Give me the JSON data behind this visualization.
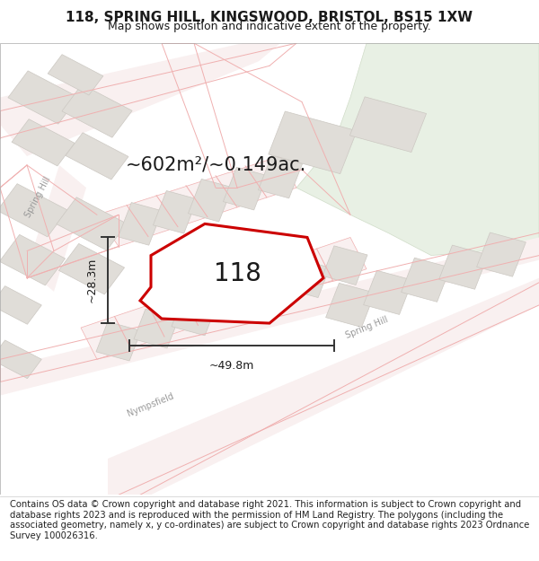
{
  "title_line1": "118, SPRING HILL, KINGSWOOD, BRISTOL, BS15 1XW",
  "title_line2": "Map shows position and indicative extent of the property.",
  "footer_text": "Contains OS data © Crown copyright and database right 2021. This information is subject to Crown copyright and database rights 2023 and is reproduced with the permission of HM Land Registry. The polygons (including the associated geometry, namely x, y co-ordinates) are subject to Crown copyright and database rights 2023 Ordnance Survey 100026316.",
  "property_label": "118",
  "area_label": "~602m²/~0.149ac.",
  "width_label": "~49.8m",
  "height_label": "~28.3m",
  "map_bg": "#f7f6f4",
  "road_outline": "#f0b0b0",
  "road_fill": "#f9f0f0",
  "building_fill": "#e0ddd8",
  "building_edge": "#ccc8c2",
  "green_fill": "#e8f0e4",
  "green_edge": "#d0dcc8",
  "property_fill": "#ffffff",
  "property_edge": "#cc0000",
  "dim_color": "#333333",
  "label_color": "#1a1a1a",
  "road_text_color": "#999999",
  "title_fs": 11,
  "sub_fs": 9,
  "footer_fs": 7.2,
  "prop_label_fs": 20,
  "area_fs": 15,
  "dim_fs": 9,
  "road_label_fs": 7
}
